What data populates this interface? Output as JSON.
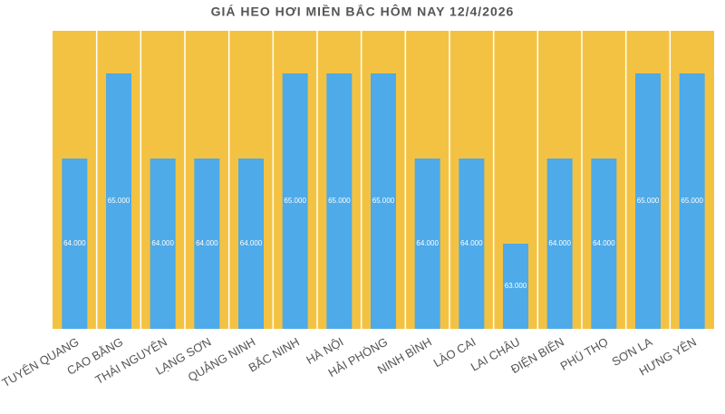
{
  "chart_data": {
    "type": "bar",
    "title": "GIÁ HEO HƠI MIỀN BẮC HÔM NAY 12/4/2026",
    "categories": [
      "TUYÊN QUANG",
      "CAO BẰNG",
      "THÁI NGUYÊN",
      "LẠNG SƠN",
      "QUẢNG NINH",
      "BẮC NINH",
      "HÀ NỘI",
      "HẢI PHÒNG",
      "NINH BÌNH",
      "LÀO CAI",
      "LAI CHÂU",
      "ĐIỆN BIÊN",
      "PHÚ THỌ",
      "SƠN LA",
      "HƯNG YÊN"
    ],
    "values": [
      64000,
      65000,
      64000,
      64000,
      64000,
      65000,
      65000,
      65000,
      64000,
      64000,
      63000,
      64000,
      64000,
      65000,
      65000
    ],
    "value_labels": [
      "64.000",
      "65.000",
      "64.000",
      "64.000",
      "64.000",
      "65.000",
      "65.000",
      "65.000",
      "64.000",
      "64.000",
      "63.000",
      "64.000",
      "64.000",
      "65.000",
      "65.000"
    ],
    "color": "#4eaae8",
    "background": "#f4c242",
    "ylim": [
      62000,
      65500
    ]
  }
}
